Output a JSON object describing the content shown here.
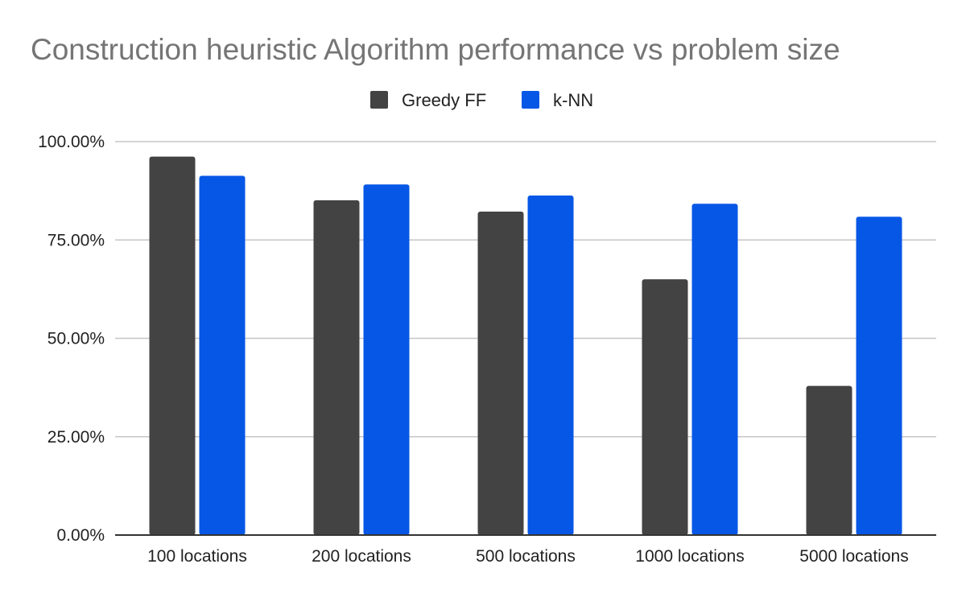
{
  "chart_data": {
    "type": "bar",
    "title": "Construction heuristic Algorithm performance vs problem size",
    "xlabel": "",
    "ylabel": "",
    "categories": [
      "100 locations",
      "200 locations",
      "500 locations",
      "1000 locations",
      "5000 locations"
    ],
    "series": [
      {
        "name": "Greedy FF",
        "color": "#434343",
        "values": [
          96.2,
          85.1,
          82.2,
          65.0,
          37.9
        ]
      },
      {
        "name": "k-NN",
        "color": "#0657e6",
        "values": [
          91.3,
          89.1,
          86.3,
          84.2,
          80.9
        ]
      }
    ],
    "ylim": [
      0,
      100
    ],
    "yticks": [
      0,
      25,
      50,
      75,
      100
    ],
    "ytick_labels": [
      "0.00%",
      "25.00%",
      "50.00%",
      "75.00%",
      "100.00%"
    ],
    "grid": true,
    "legend_position": "top-center"
  }
}
